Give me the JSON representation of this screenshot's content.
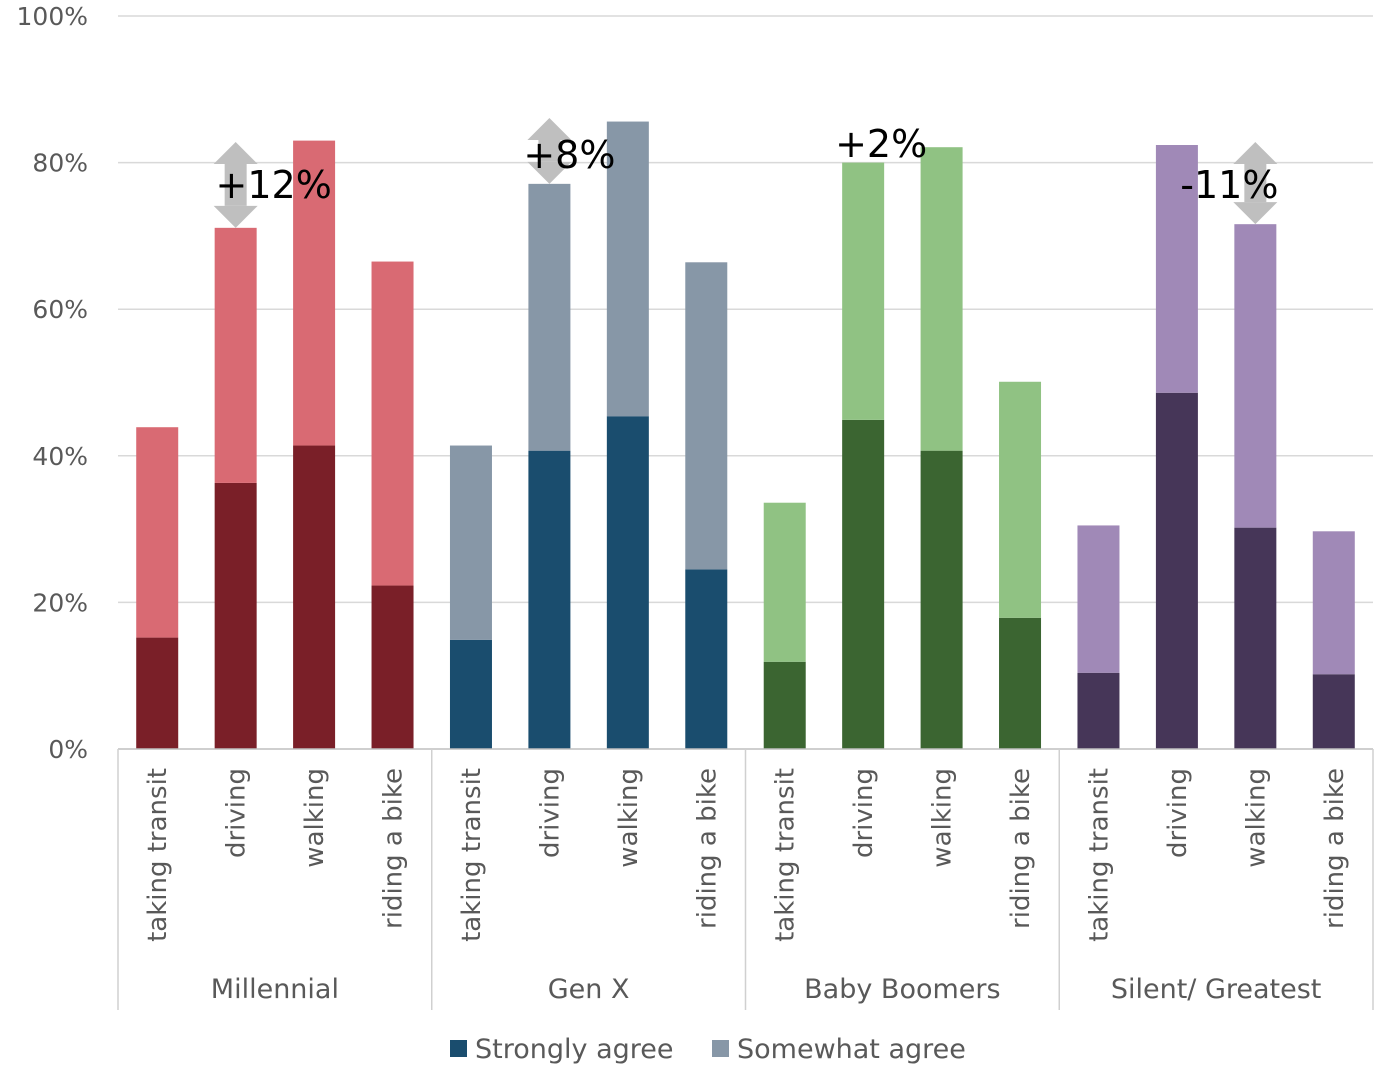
{
  "chart_data": {
    "type": "bar",
    "stacked": true,
    "y_axis": {
      "ylim": [
        0,
        100
      ],
      "ticks": [
        "0%",
        "20%",
        "40%",
        "60%",
        "80%",
        "100%"
      ],
      "grid": true
    },
    "groups": [
      {
        "name": "Millennial",
        "colors": {
          "strong": "#7a1f28",
          "somewhat": "#d96a73"
        },
        "bars": [
          {
            "label": "taking transit",
            "strongly": 15.2,
            "somewhat": 28.7
          },
          {
            "label": "driving",
            "strongly": 36.3,
            "somewhat": 34.8
          },
          {
            "label": "walking",
            "strongly": 41.4,
            "somewhat": 41.6
          },
          {
            "label": "riding a bike",
            "strongly": 22.3,
            "somewhat": 44.2
          }
        ],
        "annotation": {
          "text": "+12%",
          "bar_index": 1
        }
      },
      {
        "name": "Gen X",
        "colors": {
          "strong": "#1a4d6e",
          "somewhat": "#8797a7"
        },
        "bars": [
          {
            "label": "taking transit",
            "strongly": 14.9,
            "somewhat": 26.5
          },
          {
            "label": "driving",
            "strongly": 40.7,
            "somewhat": 36.4
          },
          {
            "label": "walking",
            "strongly": 45.4,
            "somewhat": 40.2
          },
          {
            "label": "riding a bike",
            "strongly": 24.5,
            "somewhat": 41.9
          }
        ],
        "annotation": {
          "text": "+8%",
          "bar_index": 1
        }
      },
      {
        "name": "Baby Boomers",
        "colors": {
          "strong": "#3b6531",
          "somewhat": "#90c283"
        },
        "bars": [
          {
            "label": "taking transit",
            "strongly": 11.9,
            "somewhat": 21.7
          },
          {
            "label": "driving",
            "strongly": 44.9,
            "somewhat": 35.1
          },
          {
            "label": "walking",
            "strongly": 40.7,
            "somewhat": 41.4
          },
          {
            "label": "riding a bike",
            "strongly": 17.9,
            "somewhat": 32.2
          }
        ],
        "annotation": {
          "text": "+2%",
          "bar_index": 1
        }
      },
      {
        "name": "Silent/ Greatest",
        "colors": {
          "strong": "#463658",
          "somewhat": "#a089b7"
        },
        "bars": [
          {
            "label": "taking transit",
            "strongly": 10.4,
            "somewhat": 20.1
          },
          {
            "label": "driving",
            "strongly": 48.6,
            "somewhat": 33.8
          },
          {
            "label": "walking",
            "strongly": 30.2,
            "somewhat": 41.4
          },
          {
            "label": "riding a bike",
            "strongly": 10.2,
            "somewhat": 19.5
          }
        ],
        "annotation": {
          "text": "-11%",
          "bar_index": 2
        }
      }
    ],
    "legend": {
      "placement": "bottom",
      "entries": [
        {
          "label": "Strongly agree",
          "color": "#1a4d6e"
        },
        {
          "label": "Somewhat agree",
          "color": "#8797a7"
        }
      ]
    }
  }
}
